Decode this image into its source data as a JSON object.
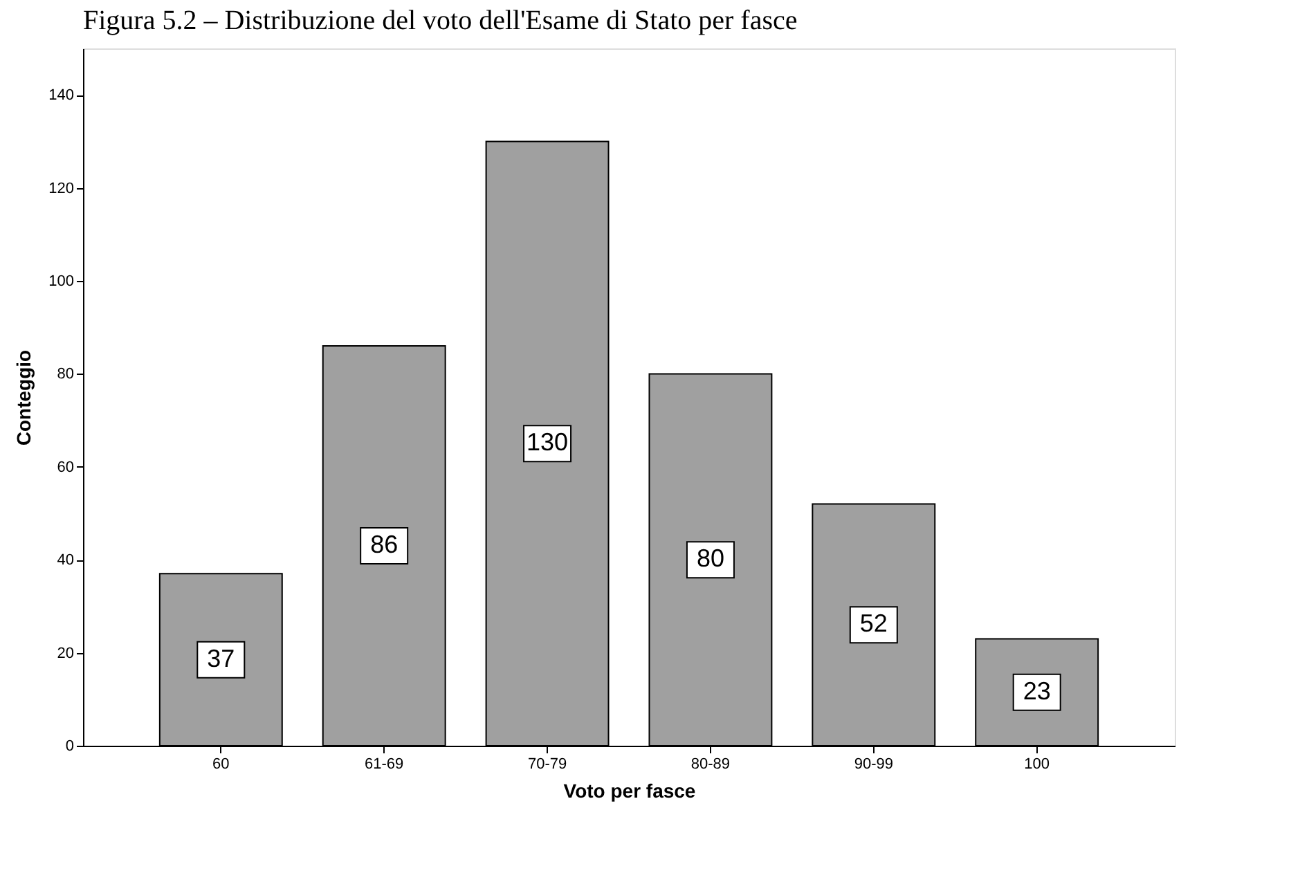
{
  "chart_data": {
    "type": "bar",
    "title": "Figura 5.2 – Distribuzione del voto dell'Esame di Stato per fasce",
    "xlabel": "Voto per fasce",
    "ylabel": "Conteggio",
    "categories": [
      "60",
      "61-69",
      "70-79",
      "80-89",
      "90-99",
      "100"
    ],
    "values": [
      37,
      86,
      130,
      80,
      52,
      23
    ],
    "color": "#a0a0a0",
    "ylim": [
      0,
      150
    ],
    "yticks": [
      0,
      20,
      40,
      60,
      80,
      100,
      120,
      140
    ],
    "grid": false,
    "data_labels": true
  }
}
